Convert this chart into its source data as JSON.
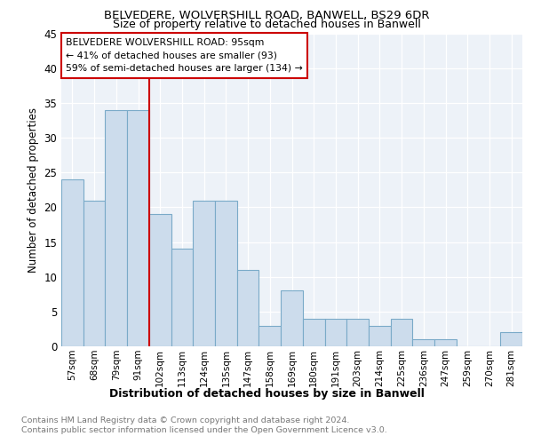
{
  "title1": "BELVEDERE, WOLVERSHILL ROAD, BANWELL, BS29 6DR",
  "title2": "Size of property relative to detached houses in Banwell",
  "xlabel": "Distribution of detached houses by size in Banwell",
  "ylabel": "Number of detached properties",
  "categories": [
    "57sqm",
    "68sqm",
    "79sqm",
    "91sqm",
    "102sqm",
    "113sqm",
    "124sqm",
    "135sqm",
    "147sqm",
    "158sqm",
    "169sqm",
    "180sqm",
    "191sqm",
    "203sqm",
    "214sqm",
    "225sqm",
    "236sqm",
    "247sqm",
    "259sqm",
    "270sqm",
    "281sqm"
  ],
  "values": [
    24,
    21,
    34,
    34,
    19,
    14,
    21,
    21,
    11,
    3,
    8,
    4,
    4,
    4,
    3,
    4,
    1,
    1,
    0,
    0,
    2
  ],
  "bar_color": "#ccdcec",
  "bar_edge_color": "#7aaac8",
  "vline_color": "#cc0000",
  "vline_x": 3.5,
  "annotation_title": "BELVEDERE WOLVERSHILL ROAD: 95sqm",
  "annotation_line1": "← 41% of detached houses are smaller (93)",
  "annotation_line2": "59% of semi-detached houses are larger (134) →",
  "annotation_box_facecolor": "#ffffff",
  "annotation_box_edgecolor": "#cc0000",
  "ylim": [
    0,
    45
  ],
  "yticks": [
    0,
    5,
    10,
    15,
    20,
    25,
    30,
    35,
    40,
    45
  ],
  "footer1": "Contains HM Land Registry data © Crown copyright and database right 2024.",
  "footer2": "Contains public sector information licensed under the Open Government Licence v3.0.",
  "plot_bg_color": "#edf2f8",
  "grid_color": "#ffffff"
}
